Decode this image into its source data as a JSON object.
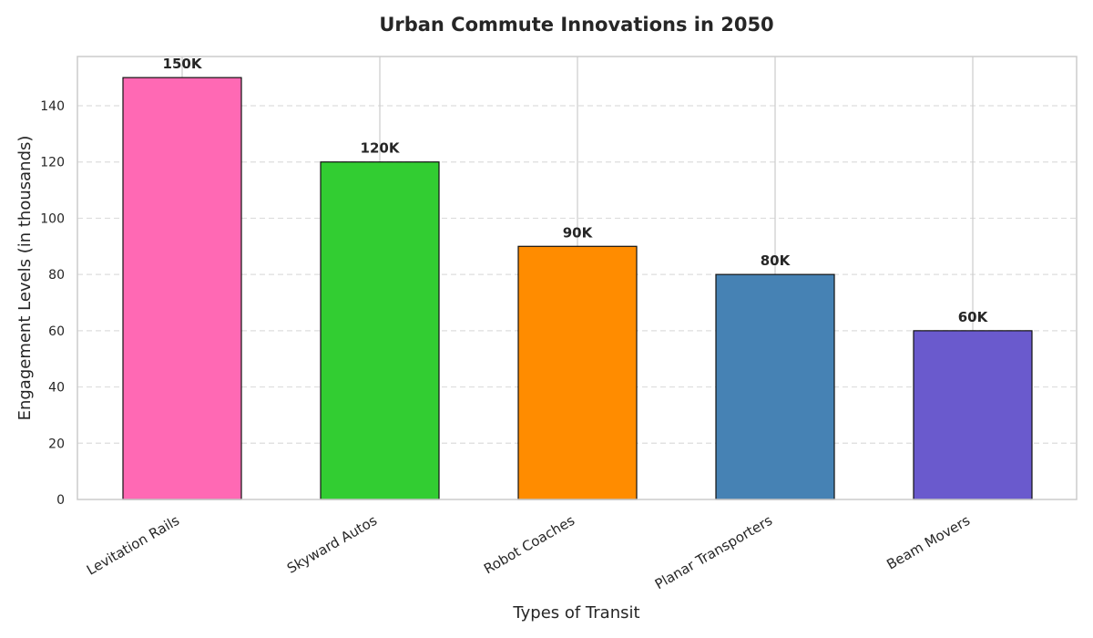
{
  "chart_data": {
    "type": "bar",
    "title": "Urban Commute Innovations in 2050",
    "xlabel": "Types of Transit",
    "ylabel": "Engagement Levels (in thousands)",
    "categories": [
      "Levitation Rails",
      "Skyward Autos",
      "Robot Coaches",
      "Planar Transporters",
      "Beam Movers"
    ],
    "values": [
      150,
      120,
      90,
      80,
      60
    ],
    "data_labels": [
      "150K",
      "120K",
      "90K",
      "80K",
      "60K"
    ],
    "colors": [
      "#ff69b4",
      "#32cd32",
      "#ff8c00",
      "#4682b4",
      "#6a5acd"
    ],
    "ylim": [
      0,
      157.5
    ],
    "yticks": [
      0,
      20,
      40,
      60,
      80,
      100,
      120,
      140
    ],
    "grid": true
  }
}
